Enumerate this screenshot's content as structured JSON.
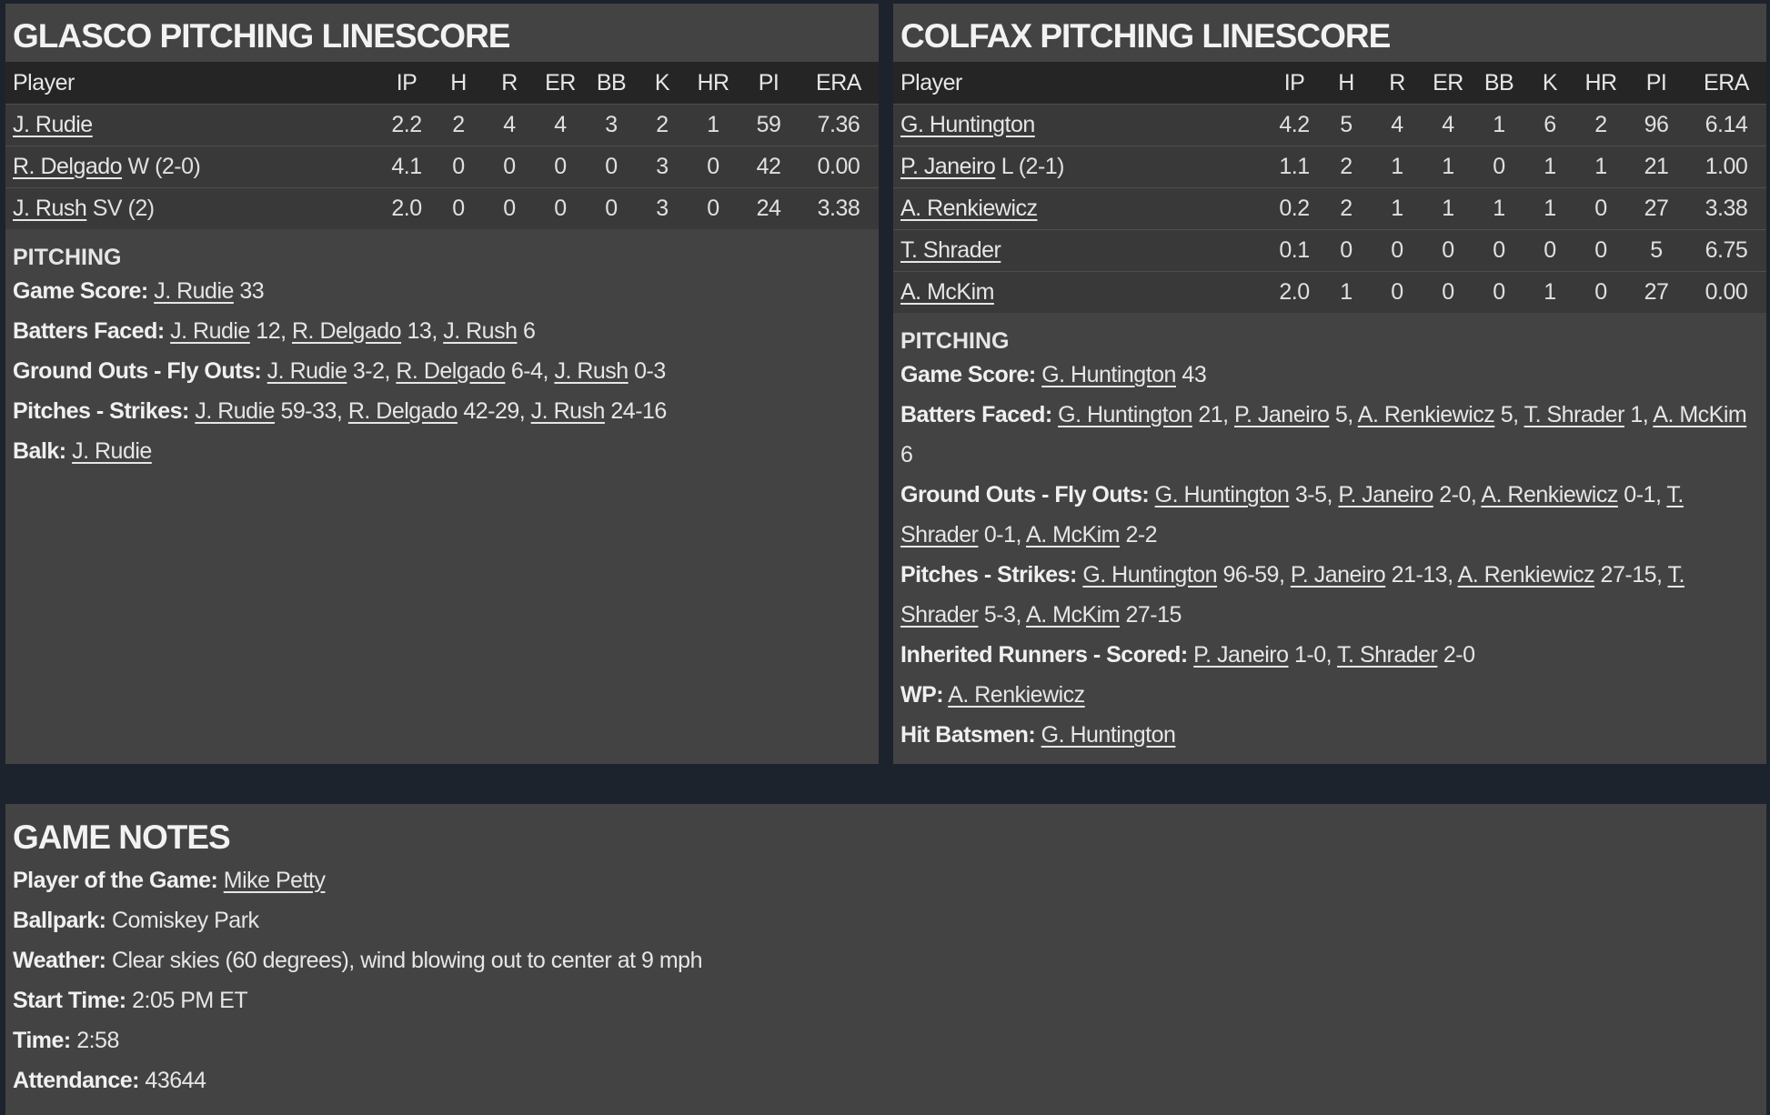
{
  "columns": [
    "Player",
    "IP",
    "H",
    "R",
    "ER",
    "BB",
    "K",
    "HR",
    "PI",
    "ERA"
  ],
  "glasco": {
    "title": "GLASCO PITCHING LINESCORE",
    "rows": [
      {
        "name": "J. Rudie",
        "note": "",
        "stats": [
          "2.2",
          "2",
          "4",
          "4",
          "3",
          "2",
          "1",
          "59",
          "7.36"
        ]
      },
      {
        "name": "R. Delgado",
        "note": "W (2-0)",
        "stats": [
          "4.1",
          "0",
          "0",
          "0",
          "0",
          "3",
          "0",
          "42",
          "0.00"
        ]
      },
      {
        "name": "J. Rush",
        "note": "SV (2)",
        "stats": [
          "2.0",
          "0",
          "0",
          "0",
          "0",
          "3",
          "0",
          "24",
          "3.38"
        ]
      }
    ],
    "section": "PITCHING",
    "details": [
      {
        "label": "Game Score:",
        "items": [
          {
            "name": "J. Rudie",
            "text": " 33"
          }
        ]
      },
      {
        "label": "Batters Faced:",
        "items": [
          {
            "name": "J. Rudie",
            "text": " 12, "
          },
          {
            "name": "R. Delgado",
            "text": " 13, "
          },
          {
            "name": "J. Rush",
            "text": " 6"
          }
        ]
      },
      {
        "label": "Ground Outs - Fly Outs:",
        "items": [
          {
            "name": "J. Rudie",
            "text": " 3-2, "
          },
          {
            "name": "R. Delgado",
            "text": " 6-4, "
          },
          {
            "name": "J. Rush",
            "text": " 0-3"
          }
        ]
      },
      {
        "label": "Pitches - Strikes:",
        "items": [
          {
            "name": "J. Rudie",
            "text": " 59-33, "
          },
          {
            "name": "R. Delgado",
            "text": " 42-29, "
          },
          {
            "name": "J. Rush",
            "text": " 24-16"
          }
        ]
      },
      {
        "label": "Balk:",
        "items": [
          {
            "name": "J. Rudie",
            "text": ""
          }
        ]
      }
    ]
  },
  "colfax": {
    "title": "COLFAX PITCHING LINESCORE",
    "rows": [
      {
        "name": "G. Huntington",
        "note": "",
        "stats": [
          "4.2",
          "5",
          "4",
          "4",
          "1",
          "6",
          "2",
          "96",
          "6.14"
        ]
      },
      {
        "name": "P. Janeiro",
        "note": "L (2-1)",
        "stats": [
          "1.1",
          "2",
          "1",
          "1",
          "0",
          "1",
          "1",
          "21",
          "1.00"
        ]
      },
      {
        "name": "A. Renkiewicz",
        "note": "",
        "stats": [
          "0.2",
          "2",
          "1",
          "1",
          "1",
          "1",
          "0",
          "27",
          "3.38"
        ]
      },
      {
        "name": "T. Shrader",
        "note": "",
        "stats": [
          "0.1",
          "0",
          "0",
          "0",
          "0",
          "0",
          "0",
          "5",
          "6.75"
        ]
      },
      {
        "name": "A. McKim",
        "note": "",
        "stats": [
          "2.0",
          "1",
          "0",
          "0",
          "0",
          "1",
          "0",
          "27",
          "0.00"
        ]
      }
    ],
    "section": "PITCHING",
    "details": [
      {
        "label": "Game Score:",
        "items": [
          {
            "name": "G. Huntington",
            "text": " 43"
          }
        ]
      },
      {
        "label": "Batters Faced:",
        "items": [
          {
            "name": "G. Huntington",
            "text": " 21, "
          },
          {
            "name": "P. Janeiro",
            "text": " 5, "
          },
          {
            "name": "A. Renkiewicz",
            "text": " 5, "
          },
          {
            "name": "T. Shrader",
            "text": " 1, "
          },
          {
            "name": "A. McKim",
            "text": " 6"
          }
        ]
      },
      {
        "label": "Ground Outs - Fly Outs:",
        "items": [
          {
            "name": "G. Huntington",
            "text": " 3-5, "
          },
          {
            "name": "P. Janeiro",
            "text": " 2-0, "
          },
          {
            "name": "A. Renkiewicz",
            "text": " 0-1, "
          },
          {
            "name": "T. Shrader",
            "text": " 0-1, "
          },
          {
            "name": "A. McKim",
            "text": " 2-2"
          }
        ]
      },
      {
        "label": "Pitches - Strikes:",
        "items": [
          {
            "name": "G. Huntington",
            "text": " 96-59, "
          },
          {
            "name": "P. Janeiro",
            "text": " 21-13, "
          },
          {
            "name": "A. Renkiewicz",
            "text": " 27-15, "
          },
          {
            "name": "T. Shrader",
            "text": " 5-3, "
          },
          {
            "name": "A. McKim",
            "text": " 27-15"
          }
        ]
      },
      {
        "label": "Inherited Runners - Scored:",
        "items": [
          {
            "name": "P. Janeiro",
            "text": " 1-0, "
          },
          {
            "name": "T. Shrader",
            "text": " 2-0"
          }
        ]
      },
      {
        "label": "WP:",
        "items": [
          {
            "name": "A. Renkiewicz",
            "text": ""
          }
        ]
      },
      {
        "label": "Hit Batsmen:",
        "items": [
          {
            "name": "G. Huntington",
            "text": ""
          }
        ]
      }
    ]
  },
  "notes": {
    "title": "GAME NOTES",
    "lines": [
      {
        "label": "Player of the Game:",
        "link": "Mike Petty",
        "text": ""
      },
      {
        "label": "Ballpark:",
        "link": "",
        "text": " Comiskey Park"
      },
      {
        "label": "Weather:",
        "link": "",
        "text": " Clear skies (60 degrees), wind blowing out to center at 9 mph"
      },
      {
        "label": "Start Time:",
        "link": "",
        "text": " 2:05 PM ET"
      },
      {
        "label": "Time:",
        "link": "",
        "text": " 2:58"
      },
      {
        "label": "Attendance:",
        "link": "",
        "text": " 43644"
      }
    ]
  }
}
